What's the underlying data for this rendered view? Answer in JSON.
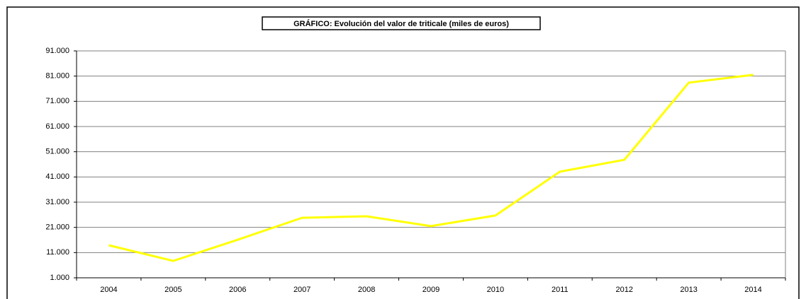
{
  "chart_data": {
    "type": "line",
    "title": "GRÁFICO: Evolución del valor de triticale (miles de euros)",
    "categories": [
      "2004",
      "2005",
      "2006",
      "2007",
      "2008",
      "2009",
      "2010",
      "2011",
      "2012",
      "2013",
      "2014"
    ],
    "series": [
      {
        "name": "triticale",
        "color": "#ffff00",
        "values": [
          13900,
          7700,
          16100,
          24800,
          25400,
          21500,
          25700,
          43100,
          47800,
          78400,
          81500
        ]
      }
    ],
    "ylim": [
      1000,
      91000
    ],
    "yticks": [
      {
        "value": 1000,
        "label": "1.000"
      },
      {
        "value": 11000,
        "label": "11.000"
      },
      {
        "value": 21000,
        "label": "21.000"
      },
      {
        "value": 31000,
        "label": "31.000"
      },
      {
        "value": 41000,
        "label": "41.000"
      },
      {
        "value": 51000,
        "label": "51.000"
      },
      {
        "value": 61000,
        "label": "61.000"
      },
      {
        "value": 71000,
        "label": "71.000"
      },
      {
        "value": 81000,
        "label": "81.000"
      },
      {
        "value": 91000,
        "label": "91.000"
      }
    ],
    "grid": true
  }
}
